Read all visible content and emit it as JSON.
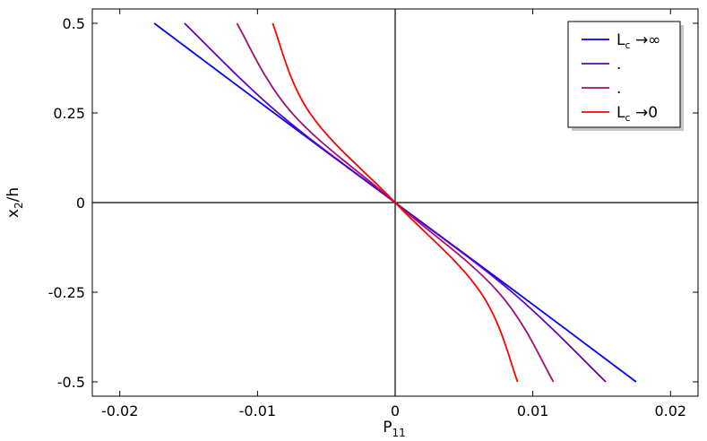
{
  "chart_data": {
    "type": "line",
    "xlabel": "P",
    "xlabel_sub": "11",
    "ylabel": "x",
    "ylabel_sub": "2",
    "ylabel_suffix": "/h",
    "xlim": [
      -0.022,
      0.022
    ],
    "ylim": [
      -0.54,
      0.54
    ],
    "xticks": [
      -0.02,
      -0.01,
      0,
      0.01,
      0.02
    ],
    "xtick_labels": [
      "-0.02",
      "-0.01",
      "0",
      "0.01",
      "0.02"
    ],
    "yticks": [
      0.5,
      0.25,
      0,
      -0.25,
      -0.5
    ],
    "ytick_labels": [
      "0.5",
      "0.25",
      "0",
      "-0.25",
      "-0.5"
    ],
    "grid": false,
    "zero_lines": true,
    "legend_position": "top-right",
    "series": [
      {
        "name": "Lc →∞",
        "label_main": "L",
        "label_sub": "c",
        "label_tail": " →∞",
        "color": "#0000ff",
        "x": [
          0.0175,
          0.0088,
          0,
          -0.0088,
          -0.0175
        ],
        "y": [
          -0.5,
          -0.25,
          0,
          0.25,
          0.5
        ]
      },
      {
        "name": ".",
        "label_main": ".",
        "label_sub": "",
        "label_tail": "",
        "color": "#5b00c8",
        "x": [
          0.0153,
          0.0085,
          0,
          -0.0085,
          -0.0153
        ],
        "y": [
          -0.5,
          -0.25,
          0,
          0.25,
          0.5
        ]
      },
      {
        "name": ".",
        "label_main": ".",
        "label_sub": "",
        "label_tail": "",
        "color": "#a0106e",
        "x": [
          0.0115,
          0.0075,
          0,
          -0.0075,
          -0.0115
        ],
        "y": [
          -0.5,
          -0.25,
          0,
          0.25,
          0.5
        ]
      },
      {
        "name": "Lc →0",
        "label_main": "L",
        "label_sub": "c",
        "label_tail": " →0",
        "color": "#ff0000",
        "x": [
          0.0089,
          0.0062,
          0,
          -0.0062,
          -0.0089
        ],
        "y": [
          -0.5,
          -0.25,
          0,
          0.25,
          0.5
        ]
      }
    ]
  }
}
